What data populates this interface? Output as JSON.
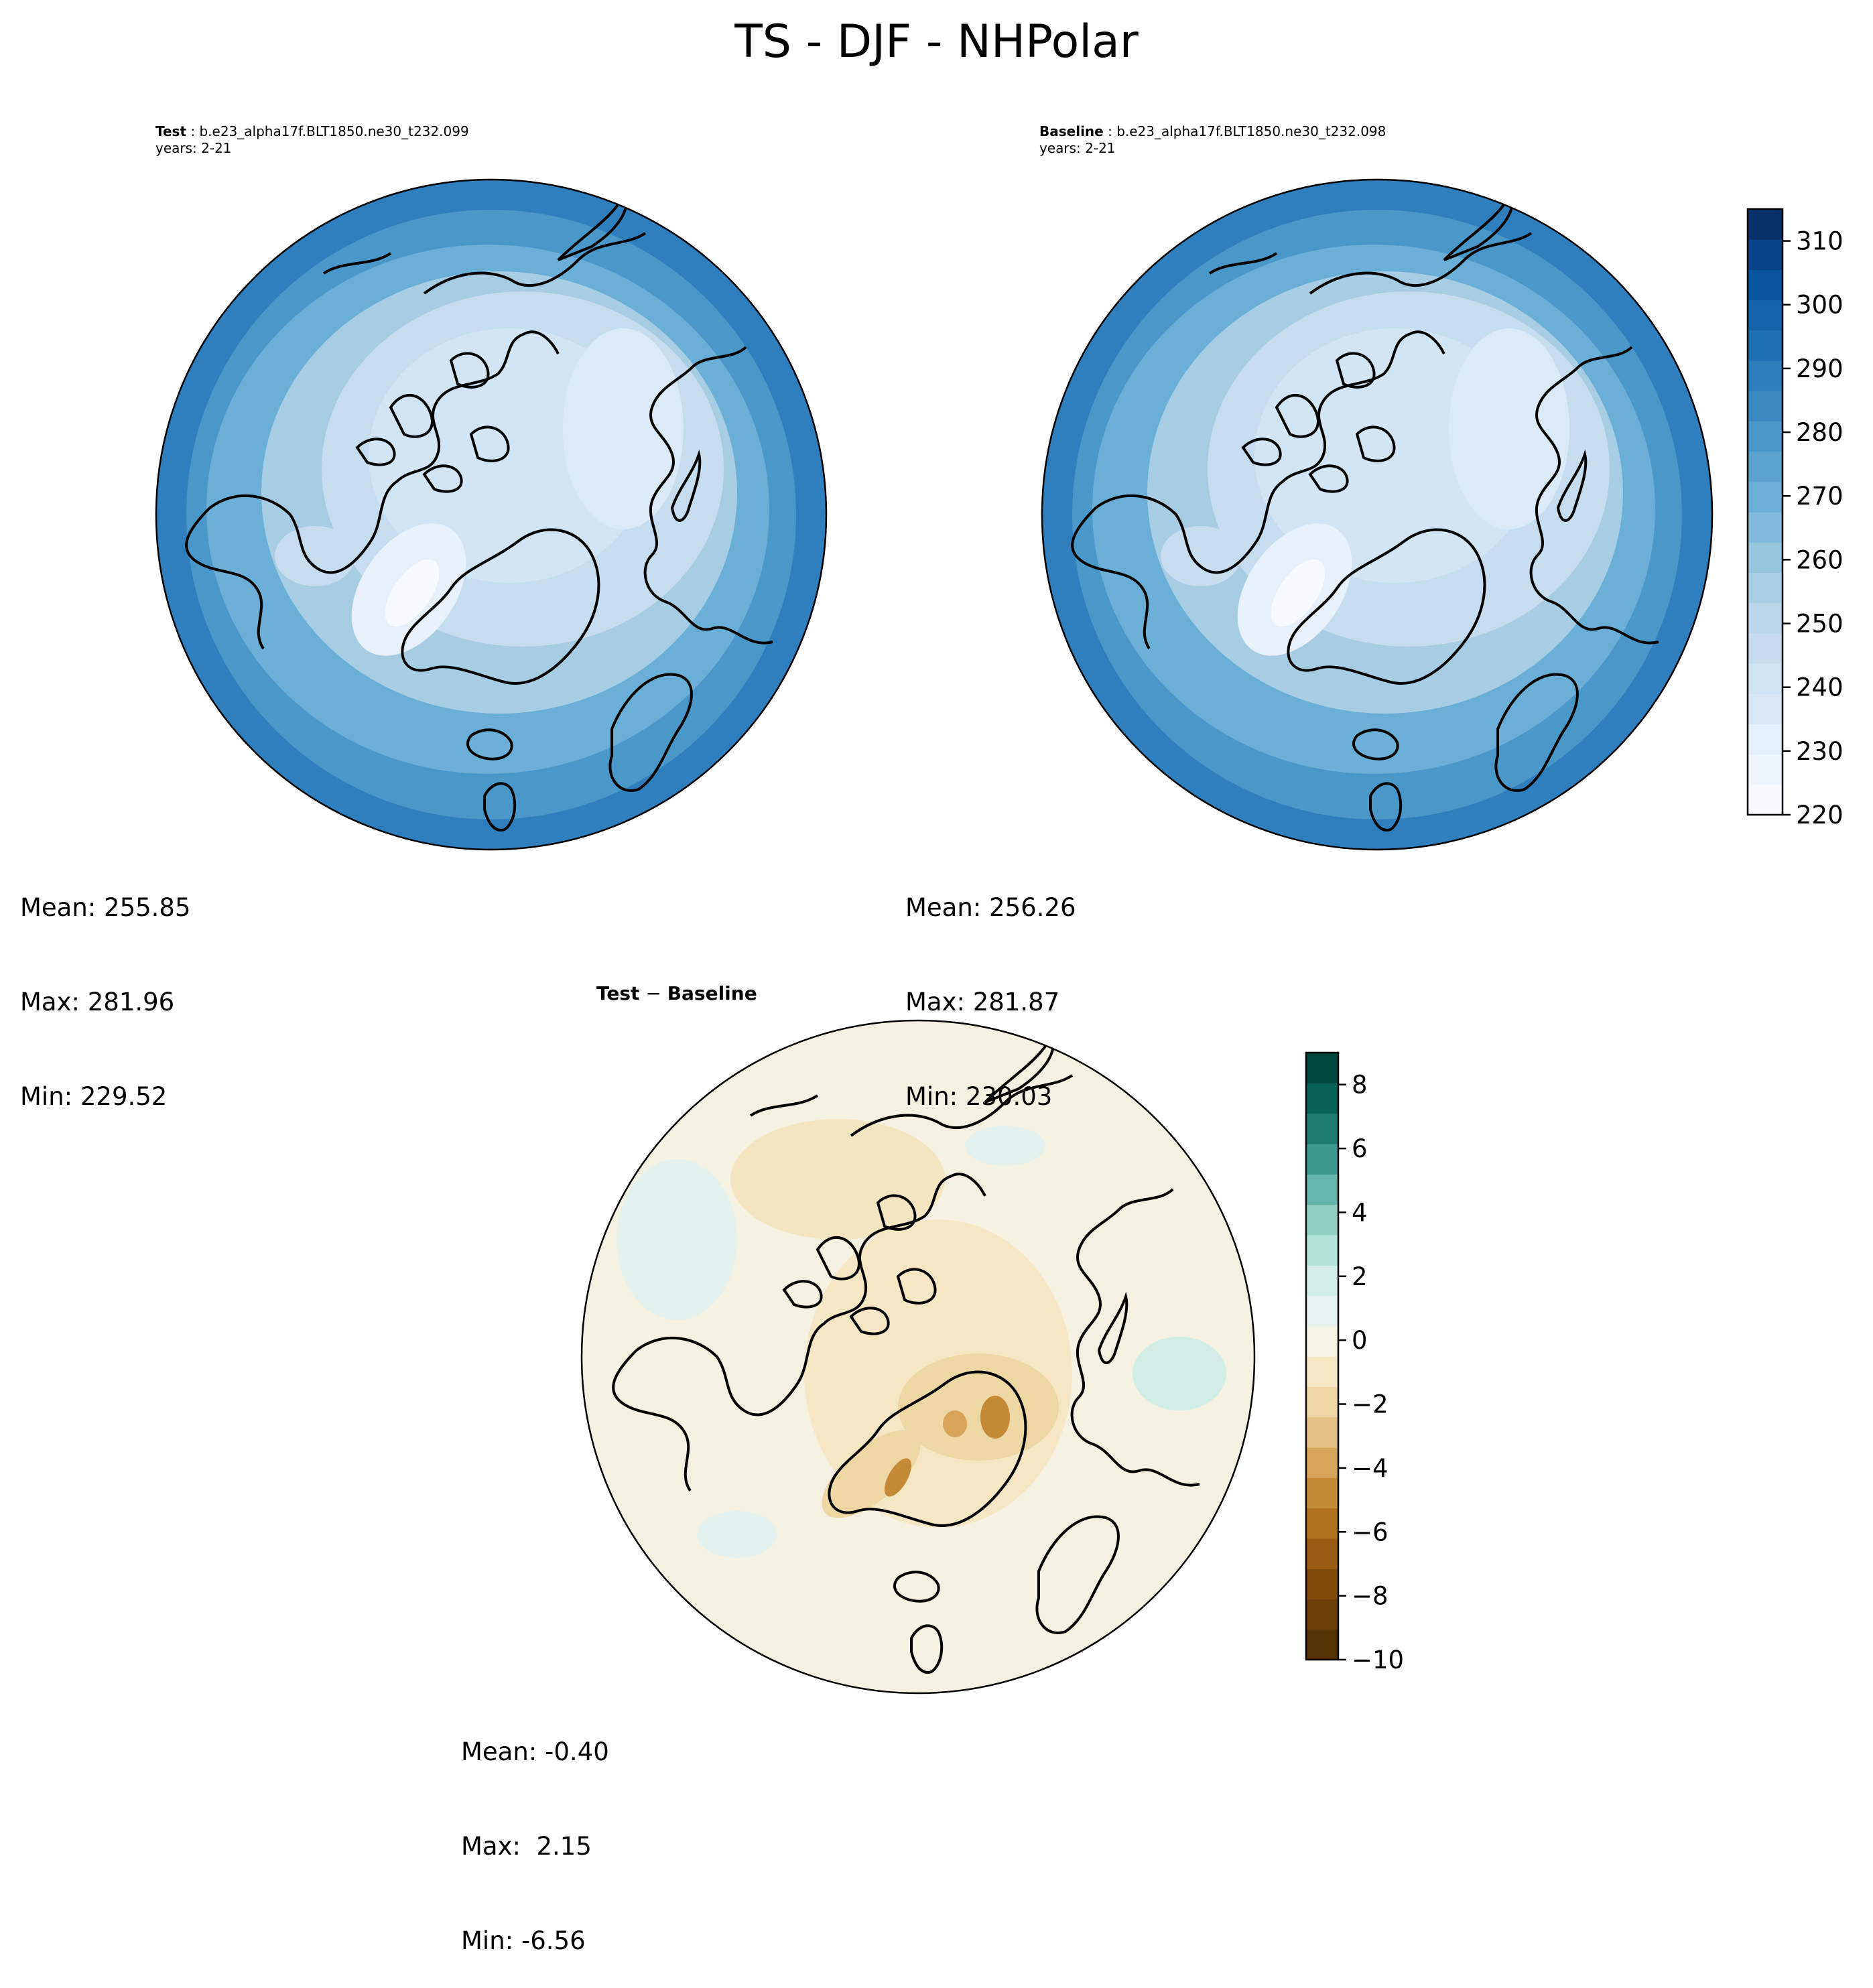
{
  "figure": {
    "title": "TS - DJF - NHPolar"
  },
  "panels": {
    "test": {
      "label": "Test",
      "case": "b.e23_alpha17f.BLT1850.ne30_t232.099",
      "years": "years: 2-21",
      "stats": {
        "mean": "Mean: 255.85",
        "max": "Max: 281.96",
        "min": "Min: 229.52"
      }
    },
    "baseline": {
      "label": "Baseline",
      "case": "b.e23_alpha17f.BLT1850.ne30_t232.098",
      "years": "years: 2-21",
      "stats": {
        "mean": "Mean: 256.26",
        "max": "Max: 281.87",
        "min": "Min: 230.03"
      }
    },
    "diff": {
      "title_a": "Test",
      "title_sep": " − ",
      "title_b": "Baseline",
      "stats": {
        "mean": "Mean: -0.40",
        "max": "Max:  2.15",
        "min": "Min: -6.56"
      }
    }
  },
  "colorbars": {
    "absolute": {
      "colormap": "Blues",
      "range": [
        220,
        315
      ],
      "ticks": [
        "220",
        "230",
        "240",
        "250",
        "260",
        "270",
        "280",
        "290",
        "300",
        "310"
      ],
      "colors": [
        "#f7fbff",
        "#eef5fc",
        "#e4eff9",
        "#dae8f6",
        "#d1e2f3",
        "#c7dbef",
        "#bad6eb",
        "#a9cfe5",
        "#97c6df",
        "#81badb",
        "#6baed6",
        "#5ba3d0",
        "#4a97c9",
        "#3b8bc2",
        "#2e7ebc",
        "#2171b5",
        "#1563aa",
        "#09549e",
        "#084487",
        "#08306b"
      ]
    },
    "difference": {
      "colormap": "BrBG",
      "range": [
        -10,
        9
      ],
      "ticks": [
        "−10",
        "−8",
        "−6",
        "−4",
        "−2",
        "0",
        "2",
        "4",
        "6",
        "8"
      ],
      "colors": [
        "#543005",
        "#6b3d07",
        "#804a09",
        "#9a5c12",
        "#b2711e",
        "#c58a37",
        "#d6a55a",
        "#e3c283",
        "#eed7a4",
        "#f5e6c4",
        "#f5f3e6",
        "#e7f1ef",
        "#d2ede6",
        "#b3e2d8",
        "#8fd0c3",
        "#64b5aa",
        "#3b978f",
        "#1d7a72",
        "#066056",
        "#01473c"
      ]
    }
  },
  "map_fill_colors": {
    "abs_ocean_outer": "#2f7fbf",
    "abs_mid": "#5ea6d4",
    "abs_inner": "#a7cde5",
    "abs_arctic": "#c9dff1",
    "abs_greenland": "#f3f8fd",
    "diff_neutral": "#f4f1e3",
    "diff_pos": "#e4f0ed",
    "diff_neg": "#efdcb0",
    "diff_strong_neg": "#c98f3d"
  }
}
